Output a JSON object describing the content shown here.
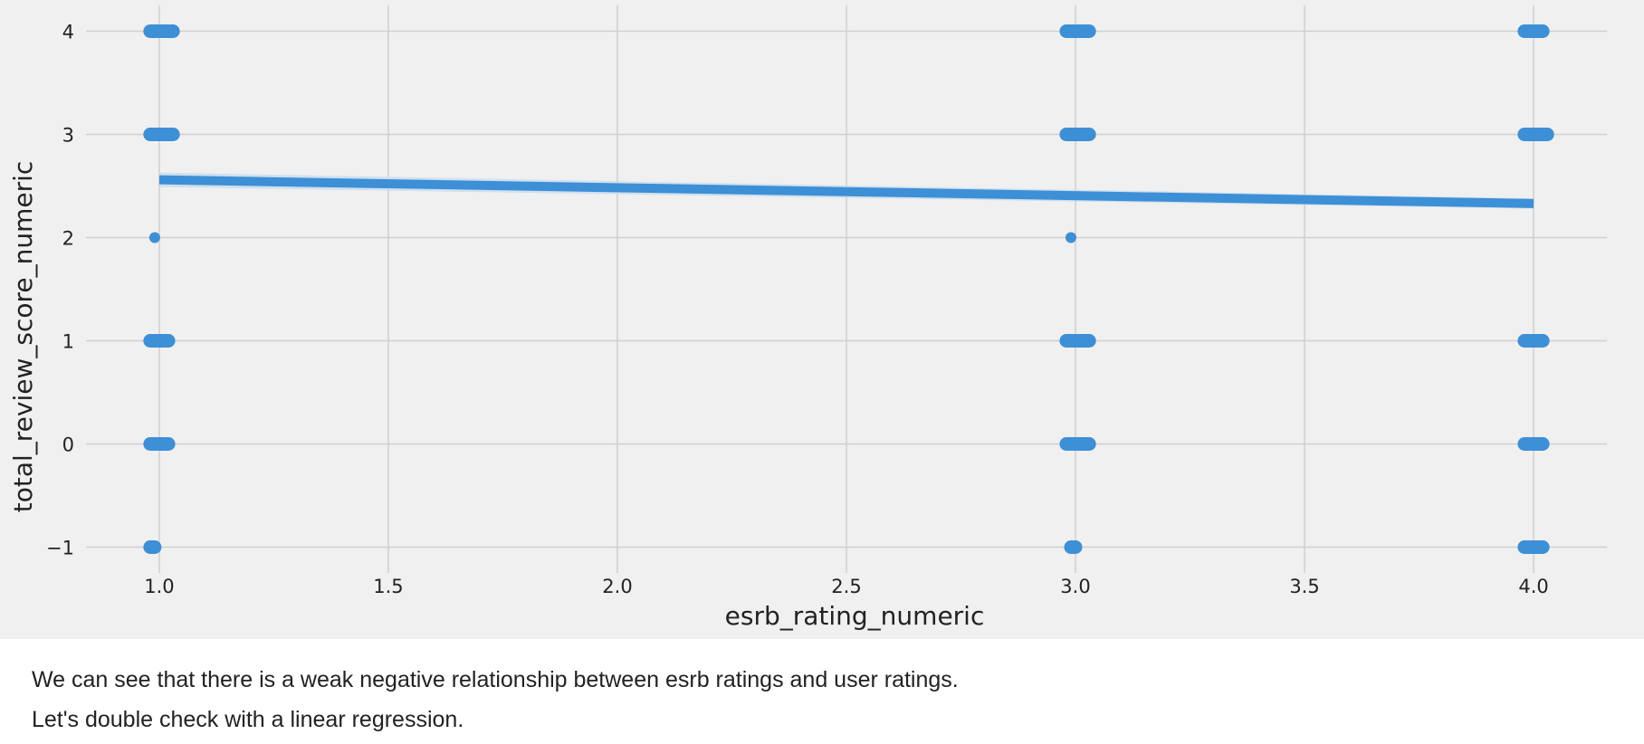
{
  "chart_data": {
    "type": "scatter",
    "xlabel": "esrb_rating_numeric",
    "ylabel": "total_review_score_numeric",
    "xlim": [
      0.84,
      4.16
    ],
    "ylim": [
      -1.25,
      4.25
    ],
    "x_ticks": [
      1.0,
      1.5,
      2.0,
      2.5,
      3.0,
      3.5,
      4.0
    ],
    "x_tick_labels": [
      "1.0",
      "1.5",
      "2.0",
      "2.5",
      "3.0",
      "3.5",
      "4.0"
    ],
    "y_ticks": [
      -1,
      0,
      1,
      2,
      3,
      4
    ],
    "y_tick_labels": [
      "−1",
      "0",
      "1",
      "2",
      "3",
      "4"
    ],
    "grid": true,
    "colors": {
      "points": "#3d8fd6",
      "line": "#3d8fd6",
      "ci_band": "#c7dcef",
      "background": "#f0f0f0",
      "grid": "#cfcfcf"
    },
    "series": [
      {
        "x": 1.0,
        "y": 4,
        "x_spread": [
          0.98,
          1.03
        ]
      },
      {
        "x": 1.0,
        "y": 3,
        "x_spread": [
          0.98,
          1.03
        ]
      },
      {
        "x": 1.0,
        "y": 2,
        "x_spread": [
          0.99,
          0.99
        ]
      },
      {
        "x": 1.0,
        "y": 1,
        "x_spread": [
          0.98,
          1.02
        ]
      },
      {
        "x": 1.0,
        "y": 0,
        "x_spread": [
          0.98,
          1.02
        ]
      },
      {
        "x": 1.0,
        "y": -1,
        "x_spread": [
          0.98,
          0.99
        ]
      },
      {
        "x": 3.0,
        "y": 4,
        "x_spread": [
          2.98,
          3.03
        ]
      },
      {
        "x": 3.0,
        "y": 3,
        "x_spread": [
          2.98,
          3.03
        ]
      },
      {
        "x": 3.0,
        "y": 2,
        "x_spread": [
          2.99,
          2.99
        ]
      },
      {
        "x": 3.0,
        "y": 1,
        "x_spread": [
          2.98,
          3.03
        ]
      },
      {
        "x": 3.0,
        "y": 0,
        "x_spread": [
          2.98,
          3.03
        ]
      },
      {
        "x": 3.0,
        "y": -1,
        "x_spread": [
          2.99,
          3.0
        ]
      },
      {
        "x": 4.0,
        "y": 4,
        "x_spread": [
          3.98,
          4.02
        ]
      },
      {
        "x": 4.0,
        "y": 3,
        "x_spread": [
          3.98,
          4.03
        ]
      },
      {
        "x": 4.0,
        "y": 1,
        "x_spread": [
          3.98,
          4.02
        ]
      },
      {
        "x": 4.0,
        "y": 0,
        "x_spread": [
          3.98,
          4.02
        ]
      },
      {
        "x": 4.0,
        "y": -1,
        "x_spread": [
          3.98,
          4.02
        ]
      }
    ],
    "regression": {
      "x": [
        1.0,
        4.0
      ],
      "y": [
        2.56,
        2.33
      ],
      "ci_halfwidth": [
        0.07,
        0.05
      ]
    }
  },
  "text": {
    "line1": "We can see that there is a weak negative relationship between esrb ratings and user ratings.",
    "line2": "Let's double check with a linear regression."
  }
}
